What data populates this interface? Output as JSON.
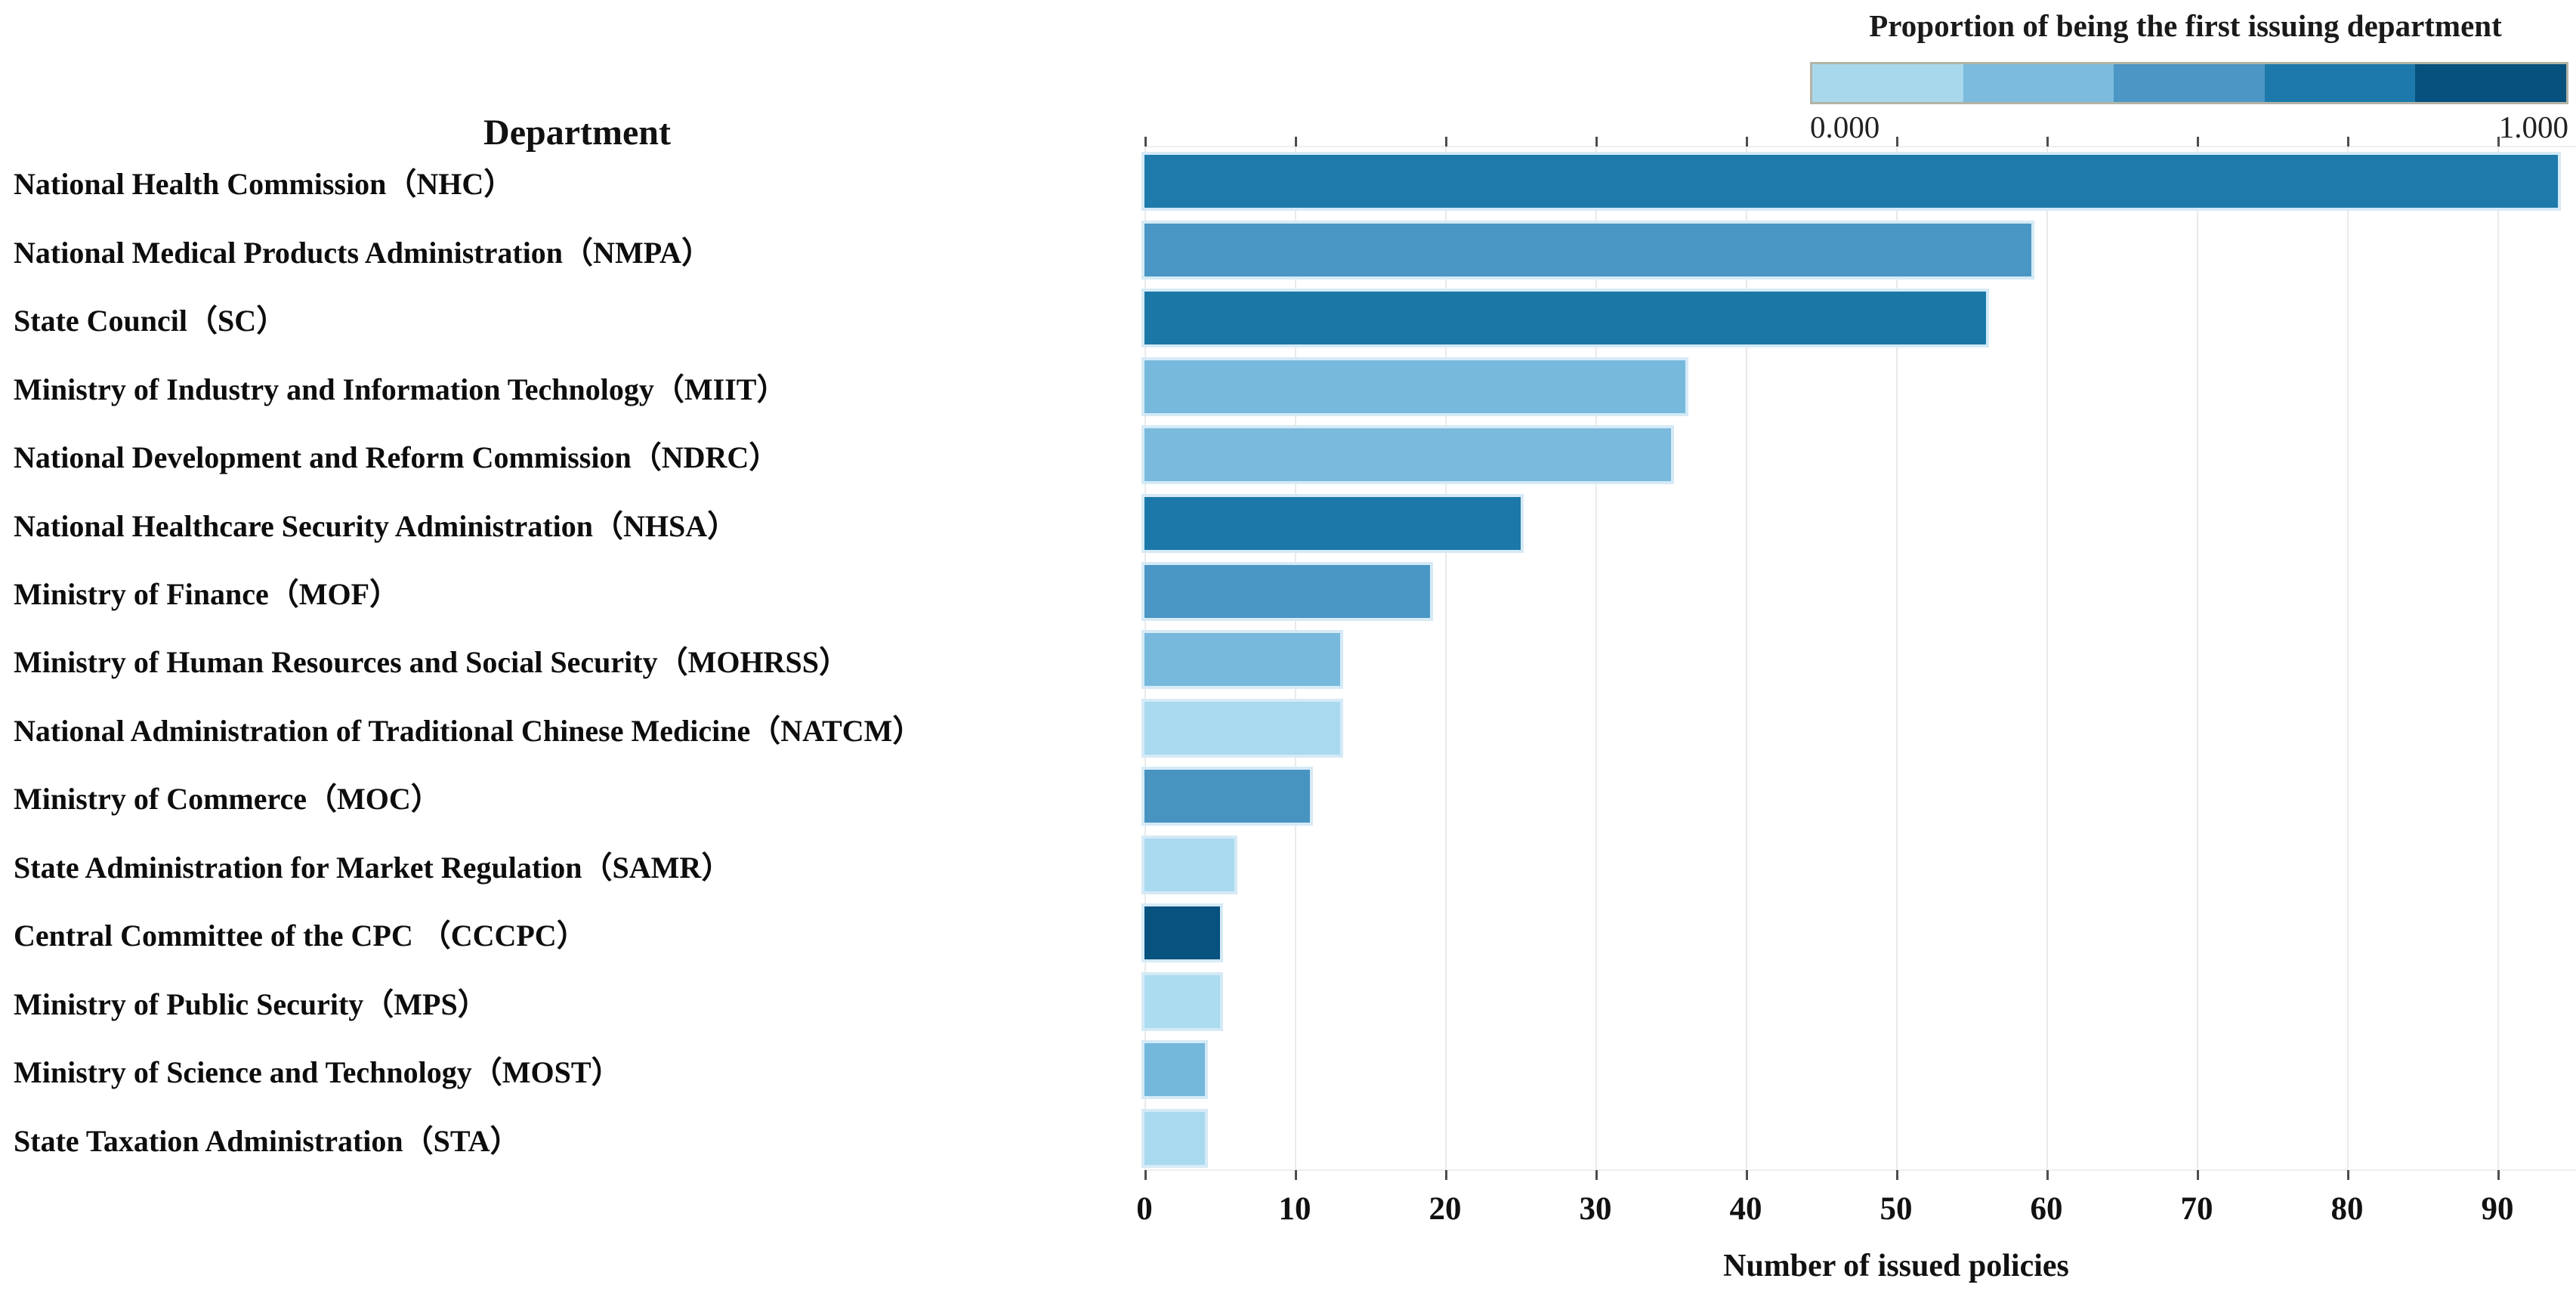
{
  "header": {
    "department_column_title": "Department"
  },
  "legend": {
    "title": "Proportion of being the first issuing department",
    "min_label": "0.000",
    "max_label": "1.000",
    "segment_colors": [
      "#a8d8ec",
      "#7cbbdd",
      "#4b96c4",
      "#1d79ab",
      "#06517e"
    ]
  },
  "x_axis": {
    "title": "Number of issued policies",
    "ticks": [
      0,
      10,
      20,
      30,
      40,
      50,
      60,
      70,
      80,
      90
    ]
  },
  "chart_data": {
    "type": "bar",
    "orientation": "horizontal",
    "xlabel": "Number of issued policies",
    "ylabel": "Department",
    "xlim": [
      0,
      95
    ],
    "grid": "vertical",
    "legend_title": "Proportion of being the first issuing department",
    "color_scale": {
      "min": 0.0,
      "max": 1.0,
      "colors": [
        "#a8d8ec",
        "#7cbbdd",
        "#4b96c4",
        "#1d79ab",
        "#06517e"
      ]
    },
    "categories": [
      "National Health Commission（NHC）",
      "National Medical Products Administration（NMPA）",
      "State Council（SC）",
      "Ministry of Industry and Information Technology（MIIT）",
      "National Development and Reform Commission（NDRC）",
      "National Healthcare Security Administration（NHSA）",
      "Ministry of Finance（MOF）",
      "Ministry of Human Resources and Social Security（MOHRSS）",
      "National Administration of Traditional Chinese Medicine（NATCM）",
      "Ministry of Commerce（MOC）",
      "State Administration for Market Regulation（SAMR）",
      "Central Committee of the CPC （CCCPC）",
      "Ministry of Public Security（MPS）",
      "Ministry of Science and Technology（MOST）",
      "State Taxation Administration（STA）"
    ],
    "values": [
      94,
      59,
      56,
      36,
      35,
      25,
      19,
      13,
      13,
      11,
      6,
      5,
      5,
      4,
      4
    ],
    "bars": [
      {
        "label": "National Health Commission（NHC）",
        "value": 94,
        "color": "#1d7aab"
      },
      {
        "label": "National Medical Products Administration（NMPA）",
        "value": 59,
        "color": "#4a96c4"
      },
      {
        "label": "State Council（SC）",
        "value": 56,
        "color": "#1a77a6"
      },
      {
        "label": "Ministry of Industry and Information Technology（MIIT）",
        "value": 36,
        "color": "#77b9dc"
      },
      {
        "label": "National Development and Reform Commission（NDRC）",
        "value": 35,
        "color": "#79badd"
      },
      {
        "label": "National Healthcare Security Administration（NHSA）",
        "value": 25,
        "color": "#1b78a8"
      },
      {
        "label": "Ministry of Finance（MOF）",
        "value": 19,
        "color": "#4a96c4"
      },
      {
        "label": "Ministry of Human Resources and Social Security（MOHRSS）",
        "value": 13,
        "color": "#77b9dc"
      },
      {
        "label": "National Administration of Traditional Chinese Medicine（NATCM）",
        "value": 13,
        "color": "#a9d9ee"
      },
      {
        "label": "Ministry of Commerce（MOC）",
        "value": 11,
        "color": "#4894c1"
      },
      {
        "label": "State Administration for Market Regulation（SAMR）",
        "value": 6,
        "color": "#aadaef"
      },
      {
        "label": "Central Committee of the CPC （CCCPC）",
        "value": 5,
        "color": "#07527f"
      },
      {
        "label": "Ministry of Public Security（MPS）",
        "value": 5,
        "color": "#abdcf0"
      },
      {
        "label": "Ministry of Science and Technology（MOST）",
        "value": 4,
        "color": "#74b8dc"
      },
      {
        "label": "State Taxation Administration（STA）",
        "value": 4,
        "color": "#a9d9ee"
      }
    ]
  }
}
